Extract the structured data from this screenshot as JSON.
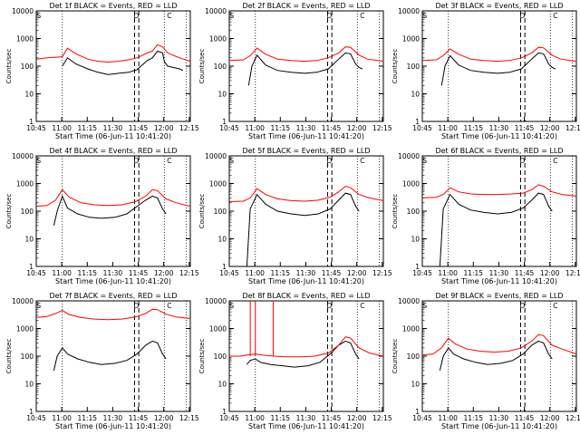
{
  "panel_title_suffix": " BLACK = Events, RED = LLD",
  "xlabel": "Start Time (06-Jun-11 10:41:20)",
  "ylabel": "Counts/sec",
  "x_ticks": [
    "10:45",
    "11:00",
    "11:15",
    "11:30",
    "11:45",
    "12:00",
    "12:15"
  ],
  "y_ticks": [
    "1",
    "10",
    "100",
    "1000",
    "10000"
  ],
  "colors": {
    "events": "#000000",
    "lld": "#ff0000"
  },
  "chart_data": [
    {
      "type": "line",
      "title": "Det 1f",
      "marker_labels": [
        "S",
        "D",
        "C"
      ],
      "x_range_min": [
        3.67,
        94.3
      ],
      "y_log_range": [
        0,
        4
      ],
      "dotted_vlines": [
        19,
        79,
        92
      ],
      "dashed_vlines": [
        61.5,
        64
      ],
      "series": [
        {
          "name": "Events",
          "x": [
            19,
            22,
            27,
            34,
            40,
            46,
            52,
            58,
            63,
            69,
            72,
            75,
            78,
            79,
            80,
            81,
            84,
            88,
            90
          ],
          "y": [
            100,
            200,
            120,
            80,
            60,
            50,
            55,
            60,
            75,
            160,
            200,
            350,
            300,
            150,
            120,
            100,
            90,
            80,
            70
          ]
        },
        {
          "name": "LLD",
          "x": [
            3.67,
            10,
            19,
            22,
            27,
            34,
            40,
            46,
            52,
            58,
            63,
            69,
            72,
            75,
            78,
            81,
            84,
            88,
            94.3
          ],
          "y": [
            180,
            200,
            220,
            450,
            280,
            180,
            150,
            140,
            150,
            170,
            200,
            300,
            350,
            600,
            500,
            300,
            250,
            200,
            150
          ]
        }
      ]
    },
    {
      "type": "line",
      "title": "Det 2f",
      "marker_labels": [
        "S",
        "D",
        "C"
      ],
      "x_range_min": [
        3.67,
        94.3
      ],
      "y_log_range": [
        0,
        4
      ],
      "dotted_vlines": [
        19,
        79,
        92
      ],
      "dashed_vlines": [
        61.5,
        64
      ],
      "series": [
        {
          "name": "Events",
          "x": [
            15,
            17,
            20,
            25,
            32,
            40,
            48,
            55,
            62,
            68,
            72,
            75,
            78,
            80,
            82
          ],
          "y": [
            20,
            100,
            250,
            110,
            70,
            60,
            55,
            60,
            80,
            180,
            300,
            280,
            120,
            90,
            80
          ]
        },
        {
          "name": "LLD",
          "x": [
            3.67,
            12,
            16,
            20,
            25,
            32,
            40,
            48,
            55,
            62,
            68,
            72,
            75,
            80,
            85,
            94.3
          ],
          "y": [
            160,
            170,
            240,
            450,
            270,
            180,
            160,
            150,
            160,
            200,
            300,
            500,
            480,
            250,
            180,
            150
          ]
        }
      ]
    },
    {
      "type": "line",
      "title": "Det 3f",
      "marker_labels": [
        "S",
        "D",
        "C"
      ],
      "x_range_min": [
        3.67,
        94.3
      ],
      "y_log_range": [
        0,
        4
      ],
      "dotted_vlines": [
        19,
        79,
        92
      ],
      "dashed_vlines": [
        61.5,
        64
      ],
      "series": [
        {
          "name": "Events",
          "x": [
            15,
            17,
            20,
            25,
            32,
            40,
            48,
            55,
            62,
            68,
            72,
            75,
            78,
            80,
            82
          ],
          "y": [
            20,
            100,
            240,
            110,
            70,
            60,
            55,
            60,
            80,
            180,
            300,
            280,
            120,
            90,
            80
          ]
        },
        {
          "name": "LLD",
          "x": [
            3.67,
            12,
            16,
            20,
            25,
            32,
            40,
            48,
            55,
            62,
            68,
            72,
            75,
            80,
            85,
            94.3
          ],
          "y": [
            160,
            170,
            240,
            420,
            270,
            180,
            160,
            150,
            160,
            200,
            300,
            480,
            460,
            250,
            180,
            150
          ]
        }
      ]
    },
    {
      "type": "line",
      "title": "Det 4f",
      "marker_labels": [
        "S",
        "D",
        "C"
      ],
      "x_range_min": [
        3.67,
        94.3
      ],
      "y_log_range": [
        0,
        4
      ],
      "dotted_vlines": [
        19,
        79,
        92
      ],
      "dashed_vlines": [
        61.5,
        64
      ],
      "series": [
        {
          "name": "Events",
          "x": [
            14,
            16,
            19,
            22,
            28,
            35,
            42,
            50,
            57,
            63,
            68,
            72,
            75,
            78,
            80
          ],
          "y": [
            30,
            100,
            350,
            130,
            80,
            60,
            55,
            60,
            80,
            150,
            250,
            350,
            300,
            120,
            80
          ]
        },
        {
          "name": "LLD",
          "x": [
            3.67,
            10,
            15,
            19,
            23,
            30,
            38,
            46,
            54,
            62,
            68,
            72,
            75,
            80,
            86,
            94.3
          ],
          "y": [
            150,
            160,
            250,
            600,
            320,
            200,
            170,
            160,
            170,
            220,
            350,
            600,
            550,
            280,
            200,
            150
          ]
        }
      ]
    },
    {
      "type": "line",
      "title": "Det 5f",
      "marker_labels": [
        "S",
        "D",
        "C"
      ],
      "x_range_min": [
        3.67,
        94.3
      ],
      "y_log_range": [
        0,
        4
      ],
      "dotted_vlines": [
        19,
        79,
        92
      ],
      "dashed_vlines": [
        61.5,
        64
      ],
      "series": [
        {
          "name": "Events",
          "x": [
            14,
            16,
            20,
            25,
            32,
            40,
            48,
            56,
            63,
            68,
            72,
            75,
            78,
            80
          ],
          "y": [
            1,
            120,
            400,
            180,
            100,
            80,
            70,
            80,
            120,
            250,
            450,
            400,
            150,
            100
          ]
        },
        {
          "name": "LLD",
          "x": [
            3.67,
            12,
            16,
            20,
            25,
            32,
            40,
            48,
            56,
            63,
            68,
            72,
            75,
            80,
            86,
            94.3
          ],
          "y": [
            220,
            230,
            300,
            650,
            400,
            280,
            240,
            230,
            250,
            320,
            500,
            800,
            700,
            400,
            300,
            240
          ]
        }
      ]
    },
    {
      "type": "line",
      "title": "Det 6f",
      "marker_labels": [
        "S",
        "D",
        "C"
      ],
      "x_range_min": [
        3.67,
        94.3
      ],
      "y_log_range": [
        0,
        4
      ],
      "dotted_vlines": [
        19,
        79,
        92
      ],
      "dashed_vlines": [
        61.5,
        64
      ],
      "series": [
        {
          "name": "Events",
          "x": [
            14,
            16,
            20,
            25,
            32,
            40,
            48,
            56,
            63,
            68,
            72,
            75,
            78,
            80
          ],
          "y": [
            1,
            120,
            400,
            180,
            110,
            90,
            80,
            90,
            130,
            250,
            450,
            400,
            150,
            100
          ]
        },
        {
          "name": "LLD",
          "x": [
            3.67,
            12,
            16,
            20,
            25,
            32,
            40,
            48,
            56,
            63,
            68,
            72,
            75,
            80,
            86,
            94.3
          ],
          "y": [
            300,
            320,
            400,
            700,
            500,
            420,
            400,
            400,
            420,
            450,
            600,
            900,
            800,
            500,
            400,
            350
          ]
        }
      ]
    },
    {
      "type": "line",
      "title": "Det 7f",
      "marker_labels": [
        "S",
        "D",
        "C"
      ],
      "x_range_min": [
        3.67,
        94.3
      ],
      "y_log_range": [
        0,
        4
      ],
      "dotted_vlines": [
        19,
        79,
        92
      ],
      "dashed_vlines": [
        61.5,
        64
      ],
      "series": [
        {
          "name": "Events",
          "x": [
            14,
            16,
            19,
            22,
            28,
            35,
            42,
            50,
            57,
            63,
            68,
            72,
            75,
            78,
            80
          ],
          "y": [
            30,
            100,
            200,
            120,
            80,
            60,
            50,
            55,
            70,
            120,
            250,
            350,
            300,
            120,
            80
          ]
        },
        {
          "name": "LLD",
          "x": [
            3.67,
            10,
            15,
            19,
            23,
            30,
            38,
            46,
            54,
            62,
            68,
            72,
            75,
            80,
            86,
            94.3
          ],
          "y": [
            2500,
            2700,
            3500,
            4500,
            3200,
            2500,
            2200,
            2100,
            2200,
            2600,
            3500,
            5000,
            4800,
            3300,
            2600,
            2300
          ]
        }
      ]
    },
    {
      "type": "line",
      "title": "Det 8f",
      "marker_labels": [
        "S",
        "D",
        "C"
      ],
      "x_range_min": [
        3.67,
        94.3
      ],
      "y_log_range": [
        0,
        4
      ],
      "dotted_vlines": [
        19,
        79,
        92
      ],
      "dashed_vlines": [
        61.5,
        64
      ],
      "series": [
        {
          "name": "Events",
          "x": [
            14,
            16,
            19,
            22,
            28,
            35,
            42,
            50,
            57,
            63,
            68,
            72,
            75,
            78,
            80
          ],
          "y": [
            50,
            70,
            80,
            60,
            50,
            45,
            40,
            45,
            60,
            120,
            250,
            350,
            300,
            120,
            80
          ]
        },
        {
          "name": "LLD",
          "x": [
            3.67,
            10,
            14,
            19,
            23,
            30,
            38,
            46,
            54,
            62,
            68,
            72,
            75,
            80,
            86,
            94.3
          ],
          "y": [
            100,
            100,
            110,
            120,
            110,
            100,
            95,
            95,
            100,
            130,
            250,
            500,
            450,
            200,
            130,
            100
          ]
        }
      ],
      "spikes": [
        16,
        19,
        29.5
      ]
    },
    {
      "type": "line",
      "title": "Det 9f",
      "marker_labels": [
        "S",
        "D",
        "C"
      ],
      "x_range_min": [
        3.67,
        94.3
      ],
      "y_log_range": [
        0,
        4
      ],
      "dotted_vlines": [
        19,
        79,
        92
      ],
      "dashed_vlines": [
        61.5,
        64
      ],
      "series": [
        {
          "name": "Events",
          "x": [
            14,
            16,
            19,
            22,
            28,
            35,
            42,
            50,
            57,
            63,
            68,
            72,
            75,
            78,
            80
          ],
          "y": [
            30,
            100,
            200,
            120,
            80,
            60,
            50,
            55,
            70,
            120,
            250,
            350,
            300,
            120,
            80
          ]
        },
        {
          "name": "LLD",
          "x": [
            3.67,
            10,
            15,
            19,
            23,
            30,
            38,
            46,
            54,
            62,
            68,
            72,
            75,
            80,
            86,
            94.3
          ],
          "y": [
            110,
            120,
            200,
            450,
            280,
            180,
            150,
            140,
            150,
            200,
            350,
            600,
            550,
            250,
            180,
            120
          ]
        }
      ]
    }
  ]
}
